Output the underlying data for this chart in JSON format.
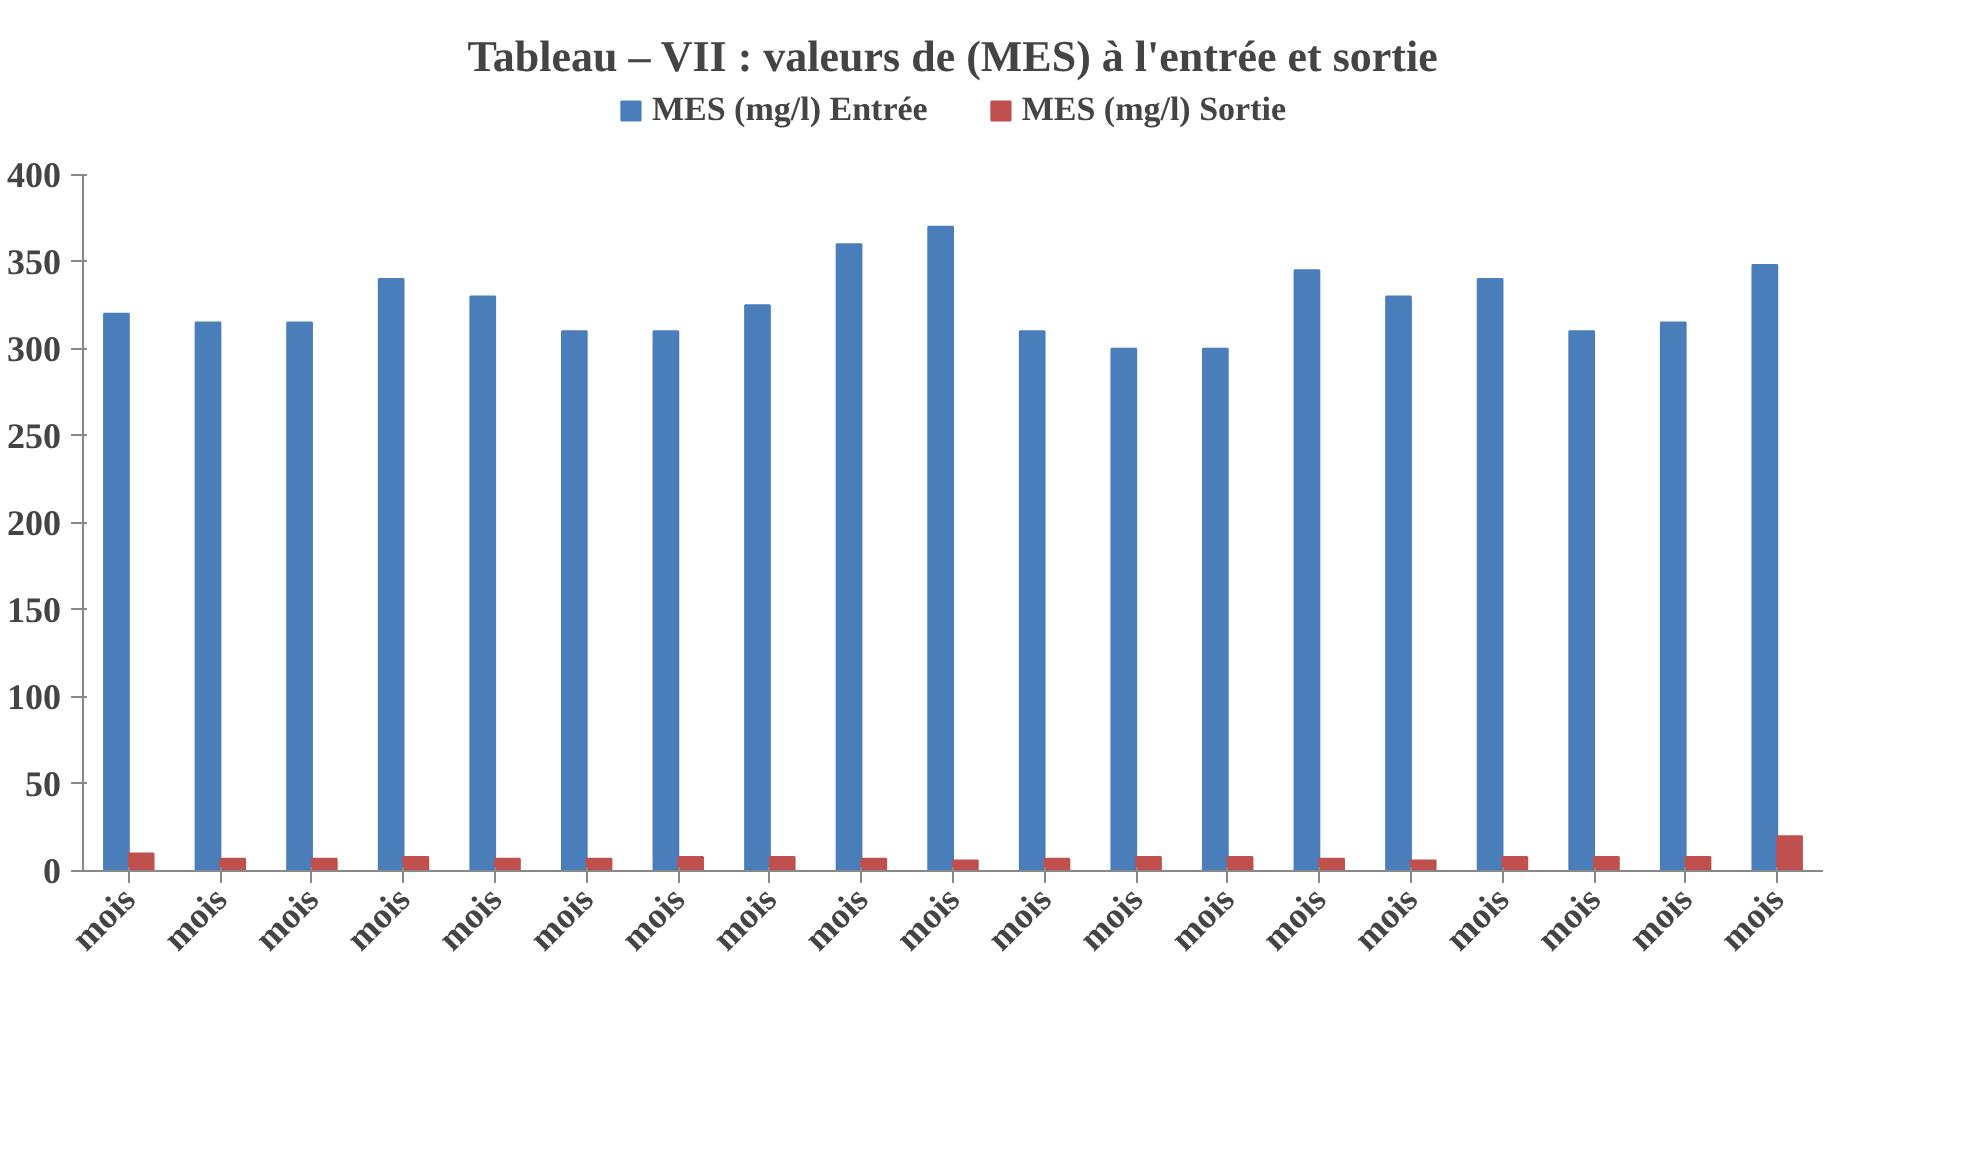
{
  "chart_data": {
    "type": "bar",
    "title": "Tableau – VII : valeurs de (MES) à l'entrée et sortie",
    "categories": [
      "mois",
      "mois",
      "mois",
      "mois",
      "mois",
      "mois",
      "mois",
      "mois",
      "mois",
      "mois",
      "mois",
      "mois",
      "mois",
      "mois",
      "mois",
      "mois",
      "mois",
      "mois",
      "mois"
    ],
    "series": [
      {
        "name": "MES (mg/l) Entrée",
        "color": "#4a7ebb",
        "values": [
          320,
          315,
          315,
          340,
          330,
          310,
          310,
          325,
          360,
          370,
          310,
          300,
          300,
          345,
          330,
          340,
          310,
          315,
          348
        ]
      },
      {
        "name": "MES (mg/l) Sortie",
        "color": "#c0504d",
        "values": [
          10,
          7,
          7,
          8,
          7,
          7,
          8,
          8,
          7,
          6,
          7,
          8,
          8,
          7,
          6,
          8,
          8,
          8,
          20
        ]
      }
    ],
    "ylim": [
      0,
      400
    ],
    "yticks": [
      0,
      50,
      100,
      150,
      200,
      250,
      300,
      350,
      400
    ],
    "grid": false,
    "legend": "top"
  }
}
